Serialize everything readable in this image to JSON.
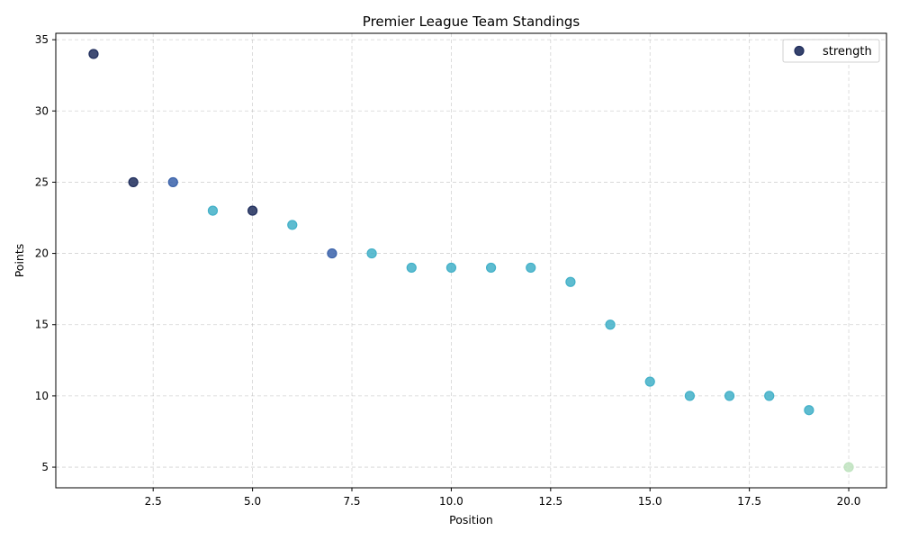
{
  "chart_data": {
    "type": "scatter",
    "title": "Premier League Team Standings",
    "xlabel": "Position",
    "ylabel": "Points",
    "xlim": [
      0.05,
      20.95
    ],
    "ylim": [
      3.55,
      35.45
    ],
    "xticks": [
      2.5,
      5.0,
      7.5,
      10.0,
      12.5,
      15.0,
      17.5,
      20.0
    ],
    "xtick_labels": [
      "2.5",
      "5.0",
      "7.5",
      "10.0",
      "12.5",
      "15.0",
      "17.5",
      "20.0"
    ],
    "yticks": [
      5,
      10,
      15,
      20,
      25,
      30,
      35
    ],
    "ytick_labels": [
      "5",
      "10",
      "15",
      "20",
      "25",
      "30",
      "35"
    ],
    "grid": true,
    "legend": {
      "position": "top-right",
      "entries": [
        {
          "label": "strength",
          "color": "#1f2d5c"
        }
      ]
    },
    "series": [
      {
        "name": "strength",
        "x": [
          1,
          2,
          3,
          4,
          5,
          6,
          7,
          8,
          9,
          10,
          11,
          12,
          13,
          14,
          15,
          16,
          17,
          18,
          19,
          20
        ],
        "y": [
          34,
          25,
          25,
          23,
          23,
          22,
          20,
          20,
          19,
          19,
          19,
          19,
          18,
          15,
          11,
          10,
          10,
          10,
          9,
          5
        ],
        "colors": [
          "#1f2d5c",
          "#1f2d5c",
          "#3a62aa",
          "#42b0c8",
          "#1f2d5c",
          "#42b0c8",
          "#3a62aa",
          "#42b0c8",
          "#42b0c8",
          "#42b0c8",
          "#42b0c8",
          "#42b0c8",
          "#42b0c8",
          "#42b0c8",
          "#42b0c8",
          "#42b0c8",
          "#42b0c8",
          "#42b0c8",
          "#42b0c8",
          "#bfe3bf"
        ]
      }
    ]
  }
}
